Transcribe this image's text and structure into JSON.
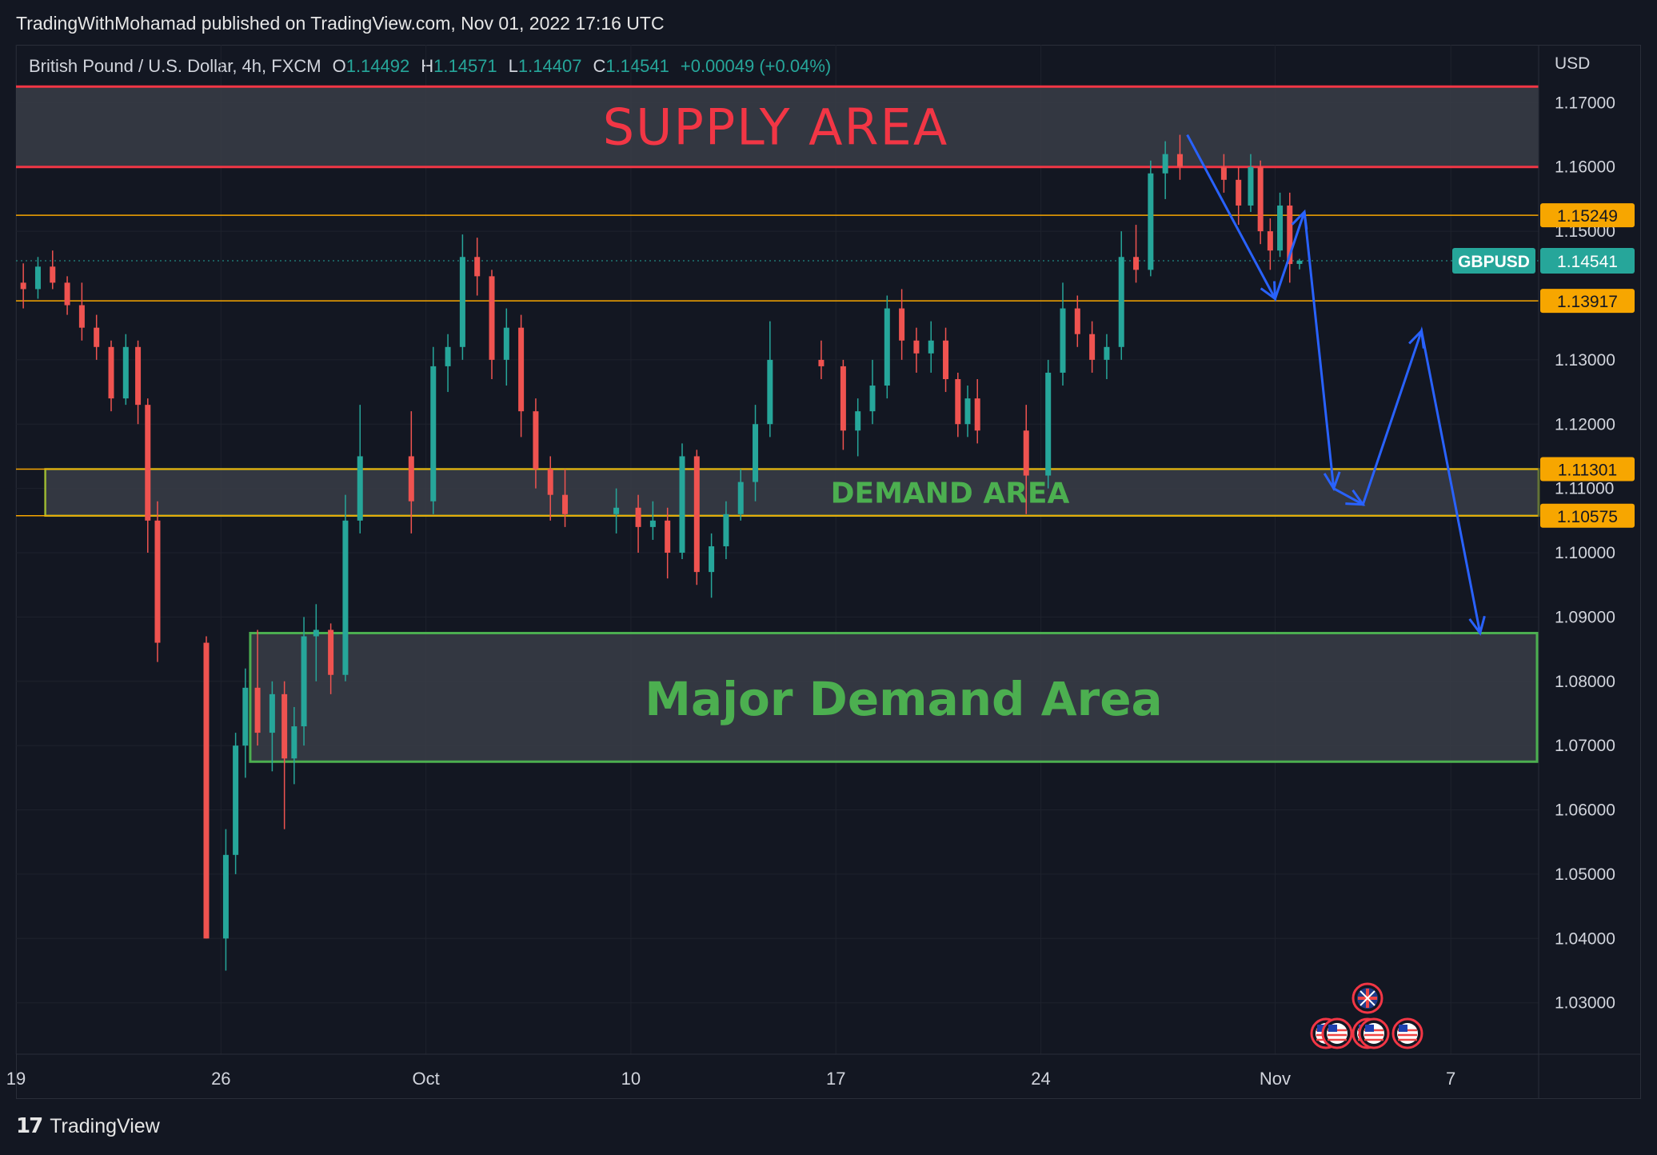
{
  "publisher_line": "TradingWithMohamad published on TradingView.com, Nov 01, 2022 17:16 UTC",
  "footer": {
    "brand": "TradingView",
    "logo_icon": "tradingview-logo-icon"
  },
  "legend": {
    "symbol": "British Pound / U.S. Dollar, 4h, FXCM",
    "open_label": "O",
    "open": "1.14492",
    "high_label": "H",
    "high": "1.14571",
    "low_label": "L",
    "low": "1.14407",
    "close_label": "C",
    "close": "1.14541",
    "change": "+0.00049 (+0.04%)"
  },
  "colors": {
    "background": "#131722",
    "bull": "#26a69a",
    "bear": "#ef5350",
    "supply_line": "#f23645",
    "level_line": "#f7a600",
    "demand_border": "#4caf50",
    "zone_fill": "#3a3d47",
    "arrow": "#2962ff"
  },
  "chart_data": {
    "type": "candlestick",
    "currency": "USD",
    "symbol_tag": "GBPUSD",
    "last_price": 1.14541,
    "ylim": [
      1.022,
      1.179
    ],
    "y_ticks": [
      "1.17000",
      "1.16000",
      "1.15000",
      "1.13000",
      "1.12000",
      "1.11000",
      "1.10000",
      "1.09000",
      "1.08000",
      "1.07000",
      "1.06000",
      "1.05000",
      "1.04000",
      "1.03000"
    ],
    "x_ticks": [
      {
        "label": "19",
        "date": "2022-09-19"
      },
      {
        "label": "26",
        "date": "2022-09-26"
      },
      {
        "label": "Oct",
        "date": "2022-10-03"
      },
      {
        "label": "10",
        "date": "2022-10-10"
      },
      {
        "label": "17",
        "date": "2022-10-17"
      },
      {
        "label": "24",
        "date": "2022-10-24"
      },
      {
        "label": "Nov",
        "date": "2022-11-01"
      },
      {
        "label": "7",
        "date": "2022-11-07"
      }
    ],
    "xlim": [
      "2022-09-19",
      "2022-11-10"
    ],
    "price_labels": [
      {
        "text": "1.15249",
        "value": 1.15249
      },
      {
        "text": "1.13917",
        "value": 1.13917
      },
      {
        "text": "1.11301",
        "value": 1.11301
      },
      {
        "text": "1.10575",
        "value": 1.10575
      }
    ],
    "zones": [
      {
        "label": "SUPPLY AREA",
        "top": 1.1725,
        "bottom": 1.16,
        "start": "2022-09-19"
      },
      {
        "label": "DEMAND AREA",
        "top": 1.11301,
        "bottom": 1.10575,
        "start": "2022-09-20"
      },
      {
        "label": "Major Demand Area",
        "top": 1.0875,
        "bottom": 1.0675,
        "start": "2022-09-27"
      }
    ],
    "projection_path": [
      {
        "date": "2022-10-29",
        "price": 1.165
      },
      {
        "date": "2022-11-01",
        "price": 1.1395
      },
      {
        "date": "2022-11-02",
        "price": 1.153
      },
      {
        "date": "2022-11-03",
        "price": 1.11
      },
      {
        "date": "2022-11-04",
        "price": 1.1075
      },
      {
        "date": "2022-11-06",
        "price": 1.1345
      },
      {
        "date": "2022-11-08",
        "price": 1.0875
      }
    ],
    "event_icons": [
      "uk-flag-icon",
      "us-flag-icon",
      "us-flag-icon",
      "us-flag-icon",
      "us-flag-icon",
      "us-flag-icon"
    ],
    "candles": [
      {
        "t": "2022-09-19",
        "o": 1.142,
        "h": 1.145,
        "l": 1.138,
        "c": 1.141
      },
      {
        "t": "2022-09-19",
        "o": 1.141,
        "h": 1.146,
        "l": 1.1395,
        "c": 1.1445
      },
      {
        "t": "2022-09-20",
        "o": 1.1445,
        "h": 1.147,
        "l": 1.141,
        "c": 1.142
      },
      {
        "t": "2022-09-20",
        "o": 1.142,
        "h": 1.143,
        "l": 1.137,
        "c": 1.1385
      },
      {
        "t": "2022-09-21",
        "o": 1.1385,
        "h": 1.142,
        "l": 1.133,
        "c": 1.135
      },
      {
        "t": "2022-09-21",
        "o": 1.135,
        "h": 1.137,
        "l": 1.13,
        "c": 1.132
      },
      {
        "t": "2022-09-22",
        "o": 1.132,
        "h": 1.133,
        "l": 1.122,
        "c": 1.124
      },
      {
        "t": "2022-09-22",
        "o": 1.124,
        "h": 1.134,
        "l": 1.123,
        "c": 1.132
      },
      {
        "t": "2022-09-23",
        "o": 1.132,
        "h": 1.133,
        "l": 1.12,
        "c": 1.123
      },
      {
        "t": "2022-09-23",
        "o": 1.123,
        "h": 1.124,
        "l": 1.1,
        "c": 1.105
      },
      {
        "t": "2022-09-23",
        "o": 1.105,
        "h": 1.108,
        "l": 1.083,
        "c": 1.086
      },
      {
        "t": "2022-09-25",
        "o": 1.086,
        "h": 1.087,
        "l": 1.04,
        "c": 1.04
      },
      {
        "t": "2022-09-26",
        "o": 1.04,
        "h": 1.057,
        "l": 1.035,
        "c": 1.053
      },
      {
        "t": "2022-09-26",
        "o": 1.053,
        "h": 1.072,
        "l": 1.05,
        "c": 1.07
      },
      {
        "t": "2022-09-26",
        "o": 1.07,
        "h": 1.082,
        "l": 1.065,
        "c": 1.079
      },
      {
        "t": "2022-09-27",
        "o": 1.079,
        "h": 1.088,
        "l": 1.07,
        "c": 1.072
      },
      {
        "t": "2022-09-27",
        "o": 1.072,
        "h": 1.08,
        "l": 1.066,
        "c": 1.078
      },
      {
        "t": "2022-09-28",
        "o": 1.078,
        "h": 1.08,
        "l": 1.057,
        "c": 1.068
      },
      {
        "t": "2022-09-28",
        "o": 1.068,
        "h": 1.076,
        "l": 1.064,
        "c": 1.073
      },
      {
        "t": "2022-09-28",
        "o": 1.073,
        "h": 1.09,
        "l": 1.07,
        "c": 1.087
      },
      {
        "t": "2022-09-29",
        "o": 1.087,
        "h": 1.092,
        "l": 1.08,
        "c": 1.088
      },
      {
        "t": "2022-09-29",
        "o": 1.088,
        "h": 1.089,
        "l": 1.078,
        "c": 1.081
      },
      {
        "t": "2022-09-30",
        "o": 1.081,
        "h": 1.109,
        "l": 1.08,
        "c": 1.105
      },
      {
        "t": "2022-09-30",
        "o": 1.105,
        "h": 1.123,
        "l": 1.103,
        "c": 1.115
      },
      {
        "t": "2022-10-02",
        "o": 1.115,
        "h": 1.122,
        "l": 1.103,
        "c": 1.108
      },
      {
        "t": "2022-10-03",
        "o": 1.108,
        "h": 1.132,
        "l": 1.106,
        "c": 1.129
      },
      {
        "t": "2022-10-03",
        "o": 1.129,
        "h": 1.134,
        "l": 1.125,
        "c": 1.132
      },
      {
        "t": "2022-10-04",
        "o": 1.132,
        "h": 1.1495,
        "l": 1.13,
        "c": 1.146
      },
      {
        "t": "2022-10-04",
        "o": 1.146,
        "h": 1.149,
        "l": 1.14,
        "c": 1.143
      },
      {
        "t": "2022-10-05",
        "o": 1.143,
        "h": 1.144,
        "l": 1.127,
        "c": 1.13
      },
      {
        "t": "2022-10-05",
        "o": 1.13,
        "h": 1.138,
        "l": 1.126,
        "c": 1.135
      },
      {
        "t": "2022-10-06",
        "o": 1.135,
        "h": 1.137,
        "l": 1.118,
        "c": 1.122
      },
      {
        "t": "2022-10-06",
        "o": 1.122,
        "h": 1.124,
        "l": 1.11,
        "c": 1.113
      },
      {
        "t": "2022-10-07",
        "o": 1.113,
        "h": 1.115,
        "l": 1.105,
        "c": 1.109
      },
      {
        "t": "2022-10-07",
        "o": 1.109,
        "h": 1.113,
        "l": 1.104,
        "c": 1.106
      },
      {
        "t": "2022-10-09",
        "o": 1.106,
        "h": 1.11,
        "l": 1.103,
        "c": 1.107
      },
      {
        "t": "2022-10-10",
        "o": 1.107,
        "h": 1.109,
        "l": 1.1,
        "c": 1.104
      },
      {
        "t": "2022-10-10",
        "o": 1.104,
        "h": 1.108,
        "l": 1.102,
        "c": 1.105
      },
      {
        "t": "2022-10-11",
        "o": 1.105,
        "h": 1.107,
        "l": 1.096,
        "c": 1.1
      },
      {
        "t": "2022-10-11",
        "o": 1.1,
        "h": 1.117,
        "l": 1.099,
        "c": 1.115
      },
      {
        "t": "2022-10-12",
        "o": 1.115,
        "h": 1.116,
        "l": 1.095,
        "c": 1.097
      },
      {
        "t": "2022-10-12",
        "o": 1.097,
        "h": 1.103,
        "l": 1.093,
        "c": 1.101
      },
      {
        "t": "2022-10-13",
        "o": 1.101,
        "h": 1.108,
        "l": 1.099,
        "c": 1.106
      },
      {
        "t": "2022-10-13",
        "o": 1.106,
        "h": 1.113,
        "l": 1.105,
        "c": 1.111
      },
      {
        "t": "2022-10-14",
        "o": 1.111,
        "h": 1.123,
        "l": 1.108,
        "c": 1.12
      },
      {
        "t": "2022-10-14",
        "o": 1.12,
        "h": 1.136,
        "l": 1.118,
        "c": 1.13
      },
      {
        "t": "2022-10-16",
        "o": 1.13,
        "h": 1.133,
        "l": 1.127,
        "c": 1.129
      },
      {
        "t": "2022-10-17",
        "o": 1.129,
        "h": 1.13,
        "l": 1.116,
        "c": 1.119
      },
      {
        "t": "2022-10-17",
        "o": 1.119,
        "h": 1.124,
        "l": 1.115,
        "c": 1.122
      },
      {
        "t": "2022-10-18",
        "o": 1.122,
        "h": 1.13,
        "l": 1.12,
        "c": 1.126
      },
      {
        "t": "2022-10-18",
        "o": 1.126,
        "h": 1.14,
        "l": 1.124,
        "c": 1.138
      },
      {
        "t": "2022-10-19",
        "o": 1.138,
        "h": 1.141,
        "l": 1.13,
        "c": 1.133
      },
      {
        "t": "2022-10-19",
        "o": 1.133,
        "h": 1.135,
        "l": 1.128,
        "c": 1.131
      },
      {
        "t": "2022-10-20",
        "o": 1.131,
        "h": 1.136,
        "l": 1.128,
        "c": 1.133
      },
      {
        "t": "2022-10-20",
        "o": 1.133,
        "h": 1.135,
        "l": 1.125,
        "c": 1.127
      },
      {
        "t": "2022-10-21",
        "o": 1.127,
        "h": 1.128,
        "l": 1.118,
        "c": 1.12
      },
      {
        "t": "2022-10-21",
        "o": 1.12,
        "h": 1.126,
        "l": 1.118,
        "c": 1.124
      },
      {
        "t": "2022-10-21",
        "o": 1.124,
        "h": 1.127,
        "l": 1.117,
        "c": 1.119
      },
      {
        "t": "2022-10-23",
        "o": 1.119,
        "h": 1.123,
        "l": 1.106,
        "c": 1.112
      },
      {
        "t": "2022-10-24",
        "o": 1.112,
        "h": 1.13,
        "l": 1.11,
        "c": 1.128
      },
      {
        "t": "2022-10-24",
        "o": 1.128,
        "h": 1.142,
        "l": 1.126,
        "c": 1.138
      },
      {
        "t": "2022-10-25",
        "o": 1.138,
        "h": 1.14,
        "l": 1.132,
        "c": 1.134
      },
      {
        "t": "2022-10-25",
        "o": 1.134,
        "h": 1.136,
        "l": 1.128,
        "c": 1.13
      },
      {
        "t": "2022-10-26",
        "o": 1.13,
        "h": 1.134,
        "l": 1.127,
        "c": 1.132
      },
      {
        "t": "2022-10-26",
        "o": 1.132,
        "h": 1.15,
        "l": 1.13,
        "c": 1.146
      },
      {
        "t": "2022-10-27",
        "o": 1.146,
        "h": 1.151,
        "l": 1.142,
        "c": 1.144
      },
      {
        "t": "2022-10-27",
        "o": 1.144,
        "h": 1.161,
        "l": 1.143,
        "c": 1.159
      },
      {
        "t": "2022-10-28",
        "o": 1.159,
        "h": 1.164,
        "l": 1.155,
        "c": 1.162
      },
      {
        "t": "2022-10-28",
        "o": 1.162,
        "h": 1.165,
        "l": 1.158,
        "c": 1.16
      },
      {
        "t": "2022-10-30",
        "o": 1.16,
        "h": 1.162,
        "l": 1.156,
        "c": 1.158
      },
      {
        "t": "2022-10-30",
        "o": 1.158,
        "h": 1.16,
        "l": 1.151,
        "c": 1.154
      },
      {
        "t": "2022-10-31",
        "o": 1.154,
        "h": 1.162,
        "l": 1.153,
        "c": 1.16
      },
      {
        "t": "2022-10-31",
        "o": 1.16,
        "h": 1.161,
        "l": 1.148,
        "c": 1.15
      },
      {
        "t": "2022-10-31",
        "o": 1.15,
        "h": 1.152,
        "l": 1.144,
        "c": 1.147
      },
      {
        "t": "2022-11-01",
        "o": 1.147,
        "h": 1.156,
        "l": 1.146,
        "c": 1.154
      },
      {
        "t": "2022-11-01",
        "o": 1.154,
        "h": 1.156,
        "l": 1.142,
        "c": 1.1449
      },
      {
        "t": "2022-11-01",
        "o": 1.14492,
        "h": 1.14571,
        "l": 1.14407,
        "c": 1.14541
      }
    ]
  }
}
